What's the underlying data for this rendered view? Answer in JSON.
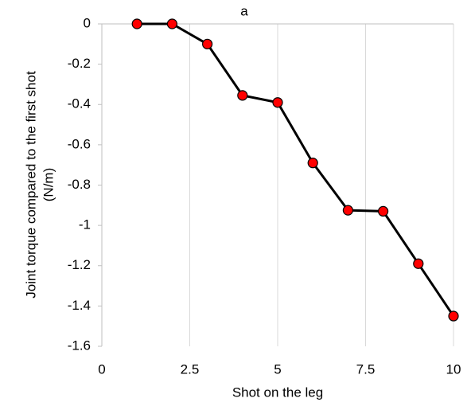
{
  "chart_data": {
    "type": "line",
    "title": "a",
    "xlabel": "Shot on the leg",
    "ylabel": [
      "Joint torque compared to the first shot",
      "(N/m)"
    ],
    "x": [
      1,
      2,
      3,
      4,
      5,
      6,
      7,
      8,
      9,
      10
    ],
    "series": [
      {
        "name": "Joint torque",
        "color": "#ff0000",
        "line_color": "#000000",
        "values": [
          0,
          0,
          -0.1,
          -0.355,
          -0.39,
          -0.69,
          -0.925,
          -0.93,
          -1.19,
          -1.45
        ]
      }
    ],
    "xlim": [
      0,
      10
    ],
    "xticks": [
      0,
      2.5,
      5,
      7.5,
      10
    ],
    "ylim": [
      -1.6,
      0
    ],
    "yticks": [
      0,
      -0.2,
      -0.4,
      -0.6,
      -0.8,
      -1,
      -1.2,
      -1.4,
      -1.6
    ],
    "grid": true
  }
}
